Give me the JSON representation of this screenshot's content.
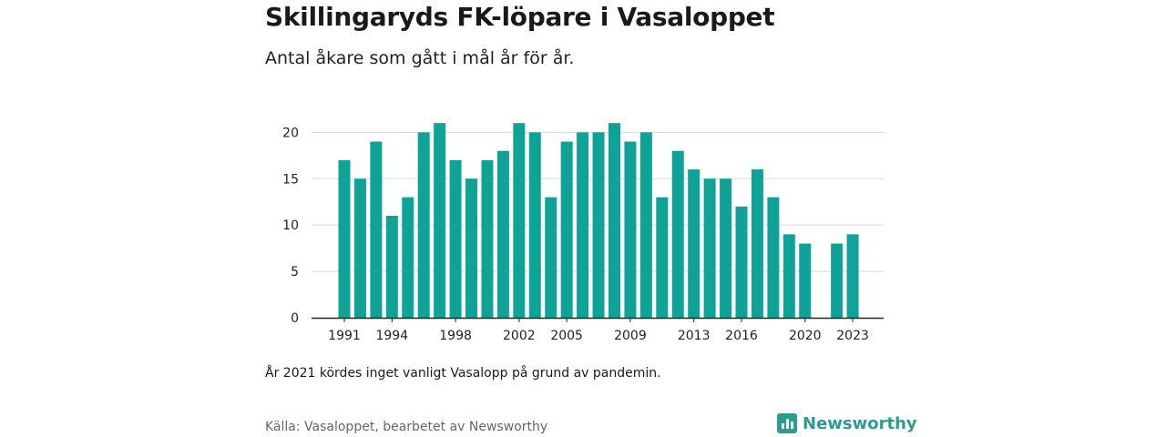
{
  "header": {
    "title": "Skillingaryds FK-löpare i Vasaloppet",
    "subtitle": "Antal åkare som gått i mål år för år."
  },
  "footer": {
    "note": "År 2021 kördes inget vanligt Vasalopp på grund av pandemin.",
    "source": "Källa: Vasaloppet, bearbetet av Newsworthy",
    "brand": "Newsworthy"
  },
  "colors": {
    "bar": "#0fa296",
    "grid": "#d9d9d9",
    "axis": "#222222",
    "brand": "#2a9d8f"
  },
  "chart_data": {
    "type": "bar",
    "title": "Skillingaryds FK-löpare i Vasaloppet",
    "subtitle": "Antal åkare som gått i mål år för år.",
    "xlabel": "",
    "ylabel": "",
    "categories": [
      1991,
      1992,
      1993,
      1994,
      1995,
      1996,
      1997,
      1998,
      1999,
      2000,
      2001,
      2002,
      2003,
      2004,
      2005,
      2006,
      2007,
      2008,
      2009,
      2010,
      2011,
      2012,
      2013,
      2014,
      2015,
      2016,
      2017,
      2018,
      2019,
      2020,
      2021,
      2022,
      2023
    ],
    "values": [
      17,
      15,
      19,
      11,
      13,
      20,
      21,
      17,
      15,
      17,
      18,
      21,
      20,
      13,
      19,
      20,
      20,
      21,
      19,
      20,
      13,
      18,
      16,
      15,
      15,
      12,
      16,
      13,
      9,
      8,
      null,
      8,
      9
    ],
    "x_tick_labels": [
      "1991",
      "1994",
      "1998",
      "2002",
      "2005",
      "2009",
      "2013",
      "2016",
      "2020",
      "2023"
    ],
    "y_ticks": [
      0,
      5,
      10,
      15,
      20
    ],
    "ylim": [
      0,
      22
    ],
    "grid": true,
    "legend": "none"
  }
}
